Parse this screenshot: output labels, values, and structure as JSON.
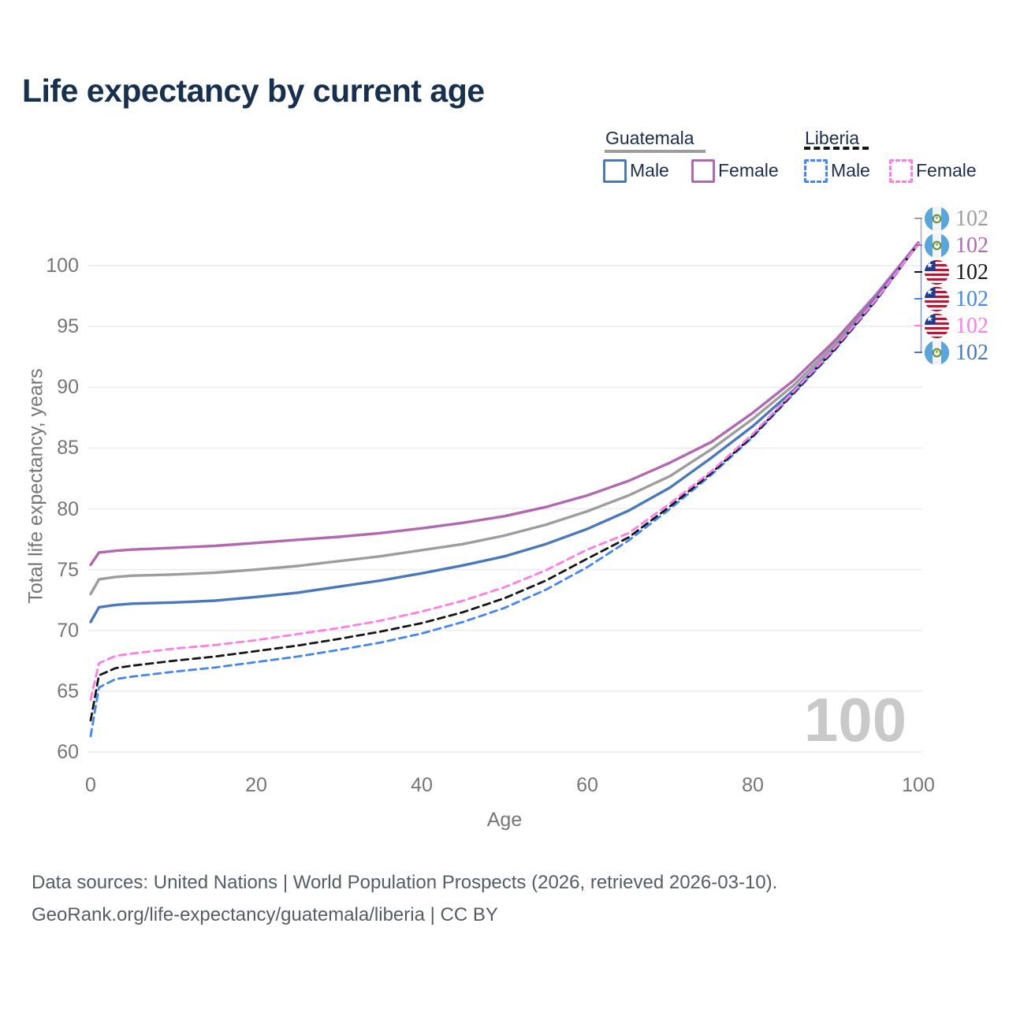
{
  "title": "Life expectancy by current age",
  "legend": {
    "groups": [
      {
        "country": "Guatemala",
        "rule_style": "solid",
        "rule_color": "#9d9d9d",
        "items": [
          {
            "label": "Male",
            "color": "#4a78bd",
            "dash": false
          },
          {
            "label": "Female",
            "color": "#b268b0",
            "dash": false
          }
        ]
      },
      {
        "country": "Liberia",
        "rule_style": "dashed",
        "rule_color": "#161616",
        "items": [
          {
            "label": "Male",
            "color": "#4285f4",
            "dash": true
          },
          {
            "label": "Female",
            "color": "#ff7ce8",
            "dash": true
          }
        ]
      }
    ]
  },
  "watermark": "100",
  "right_labels": [
    {
      "flag": "guatemala",
      "value": "102",
      "color": "#9d9d9d"
    },
    {
      "flag": "guatemala",
      "value": "102",
      "color": "#b268b0"
    },
    {
      "flag": "liberia",
      "value": "102",
      "color": "#161616"
    },
    {
      "flag": "liberia",
      "value": "102",
      "color": "#4285f4"
    },
    {
      "flag": "liberia",
      "value": "102",
      "color": "#ff7ce8"
    },
    {
      "flag": "guatemala",
      "value": "102",
      "color": "#4a78bd"
    }
  ],
  "footer": {
    "line1": "Data sources: United Nations | World Population Prospects (2026, retrieved 2026-03-10).",
    "line2": "GeoRank.org/life-expectancy/guatemala/liberia | CC BY"
  },
  "chart_data": {
    "type": "line",
    "title": "Life expectancy by current age",
    "xlabel": "Age",
    "ylabel": "Total life expectancy, years",
    "xlim": [
      0,
      100
    ],
    "ylim": [
      58.5,
      102.5
    ],
    "xticks": [
      0,
      20,
      40,
      60,
      80,
      100
    ],
    "yticks": [
      60,
      65,
      70,
      75,
      80,
      85,
      90,
      95,
      100
    ],
    "grid": "horizontal-only",
    "legend_position": "top-right",
    "x": [
      0,
      1,
      3,
      5,
      10,
      15,
      20,
      25,
      30,
      35,
      40,
      45,
      50,
      55,
      60,
      65,
      70,
      75,
      80,
      85,
      90,
      95,
      100
    ],
    "series": [
      {
        "key": "guatemala-total",
        "name": "Guatemala — Total",
        "color": "#9d9d9d",
        "dash": false,
        "end_label": "102",
        "values": [
          73.0,
          74.2,
          74.4,
          74.5,
          74.6,
          74.75,
          75.0,
          75.3,
          75.7,
          76.1,
          76.6,
          77.1,
          77.8,
          78.7,
          79.8,
          81.1,
          82.7,
          84.9,
          87.4,
          90.2,
          93.6,
          97.5,
          101.85
        ]
      },
      {
        "key": "guatemala-female",
        "name": "Guatemala — Female",
        "color": "#b268b0",
        "dash": false,
        "end_label": "102",
        "values": [
          75.4,
          76.4,
          76.55,
          76.65,
          76.8,
          76.95,
          77.2,
          77.45,
          77.7,
          78.0,
          78.4,
          78.85,
          79.4,
          80.15,
          81.1,
          82.3,
          83.8,
          85.5,
          87.9,
          90.6,
          93.9,
          97.7,
          101.9
        ]
      },
      {
        "key": "guatemala-male",
        "name": "Guatemala — Male",
        "color": "#4a78bd",
        "dash": false,
        "end_label": "102",
        "values": [
          70.7,
          71.9,
          72.1,
          72.2,
          72.3,
          72.45,
          72.75,
          73.1,
          73.6,
          74.1,
          74.7,
          75.35,
          76.1,
          77.1,
          78.35,
          79.85,
          81.75,
          84.2,
          86.8,
          89.8,
          93.3,
          97.4,
          101.8
        ]
      },
      {
        "key": "liberia-male",
        "name": "Liberia — Male",
        "color": "#4285f4",
        "dash": true,
        "end_label": "102",
        "values": [
          61.3,
          65.3,
          66.0,
          66.2,
          66.6,
          66.95,
          67.4,
          67.85,
          68.4,
          69.0,
          69.75,
          70.7,
          71.85,
          73.35,
          75.2,
          77.4,
          80.0,
          82.8,
          85.9,
          89.5,
          93.1,
          97.2,
          101.8
        ]
      },
      {
        "key": "liberia-total",
        "name": "Liberia — Total",
        "color": "#161616",
        "dash": true,
        "end_label": "102",
        "values": [
          62.6,
          66.3,
          66.9,
          67.1,
          67.5,
          67.85,
          68.3,
          68.75,
          69.3,
          69.9,
          70.6,
          71.5,
          72.65,
          74.1,
          75.9,
          77.65,
          80.2,
          82.95,
          86.0,
          89.6,
          93.2,
          97.25,
          101.8
        ]
      },
      {
        "key": "liberia-female",
        "name": "Liberia — Female",
        "color": "#ff7ce8",
        "dash": true,
        "end_label": "102",
        "values": [
          64.3,
          67.3,
          67.9,
          68.1,
          68.5,
          68.8,
          69.2,
          69.7,
          70.2,
          70.8,
          71.55,
          72.45,
          73.55,
          74.95,
          76.65,
          78.0,
          80.45,
          83.1,
          86.15,
          89.7,
          93.3,
          97.3,
          101.8
        ]
      }
    ]
  }
}
